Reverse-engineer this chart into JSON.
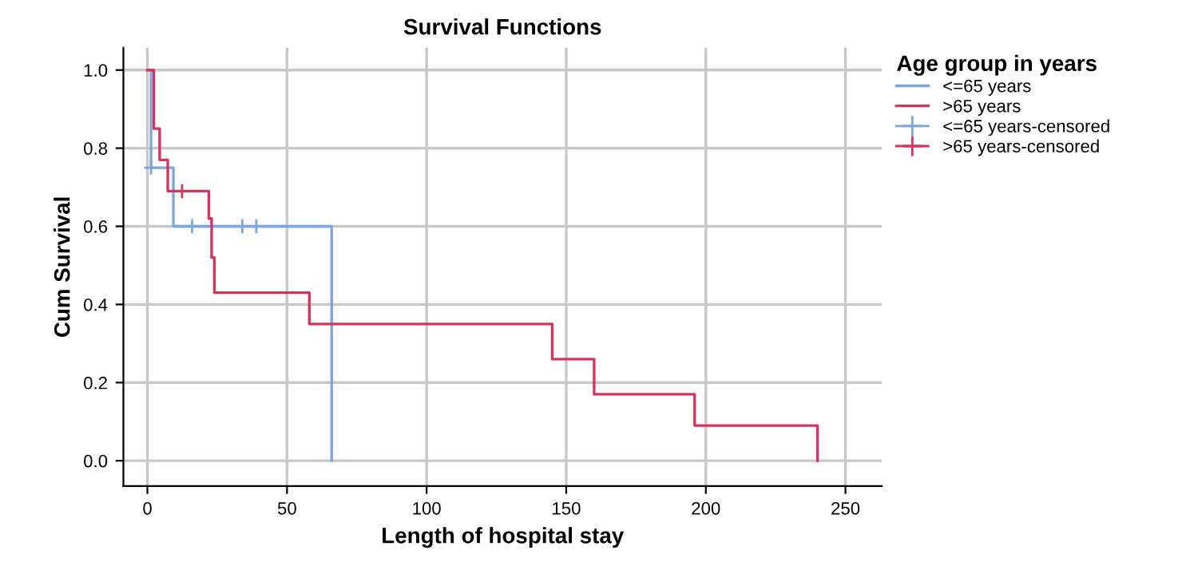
{
  "chart_data": {
    "type": "step",
    "title": "Survival Functions",
    "xlabel": "Length of hospital stay",
    "ylabel": "Cum Survival",
    "legend_title": "Age group in years",
    "xlim": [
      -8.6,
      263
    ],
    "xticks": [
      0,
      50,
      100,
      150,
      200,
      250
    ],
    "ylim": [
      -0.065,
      1.057
    ],
    "yticks": [
      {
        "value": 0,
        "label": "0.0"
      },
      {
        "value": 0.2,
        "label": "0.2"
      },
      {
        "value": 0.4,
        "label": "0.4"
      },
      {
        "value": 0.6,
        "label": "0.6"
      },
      {
        "value": 0.8,
        "label": "0.8"
      },
      {
        "value": 1,
        "label": "1.0"
      }
    ],
    "grid": true,
    "legend": "top right",
    "series": [
      {
        "name": "<=65 years",
        "color": "#7ba7e0",
        "x": [
          0,
          1.3,
          9.3,
          66
        ],
        "values": [
          1.0,
          0.75,
          0.6,
          0.0
        ]
      },
      {
        "name": ">65 years",
        "color": "#d6335f",
        "x": [
          0,
          2.3,
          4.4,
          7.3,
          22,
          23,
          24,
          58,
          145,
          160,
          196,
          240
        ],
        "values": [
          1.0,
          0.85,
          0.77,
          0.69,
          0.62,
          0.52,
          0.43,
          0.35,
          0.26,
          0.17,
          0.09,
          0.0
        ]
      },
      {
        "name": "<=65 years-censored",
        "type": "scatter",
        "marker": "cross",
        "color": "#7ba7e0",
        "x": [
          1.3,
          16,
          34,
          39
        ],
        "values": [
          0.75,
          0.6,
          0.6,
          0.6
        ]
      },
      {
        "name": ">65 years-censored",
        "type": "scatter",
        "marker": "cross",
        "color": "#d6335f",
        "x": [
          12.4
        ],
        "values": [
          0.69
        ]
      }
    ]
  }
}
